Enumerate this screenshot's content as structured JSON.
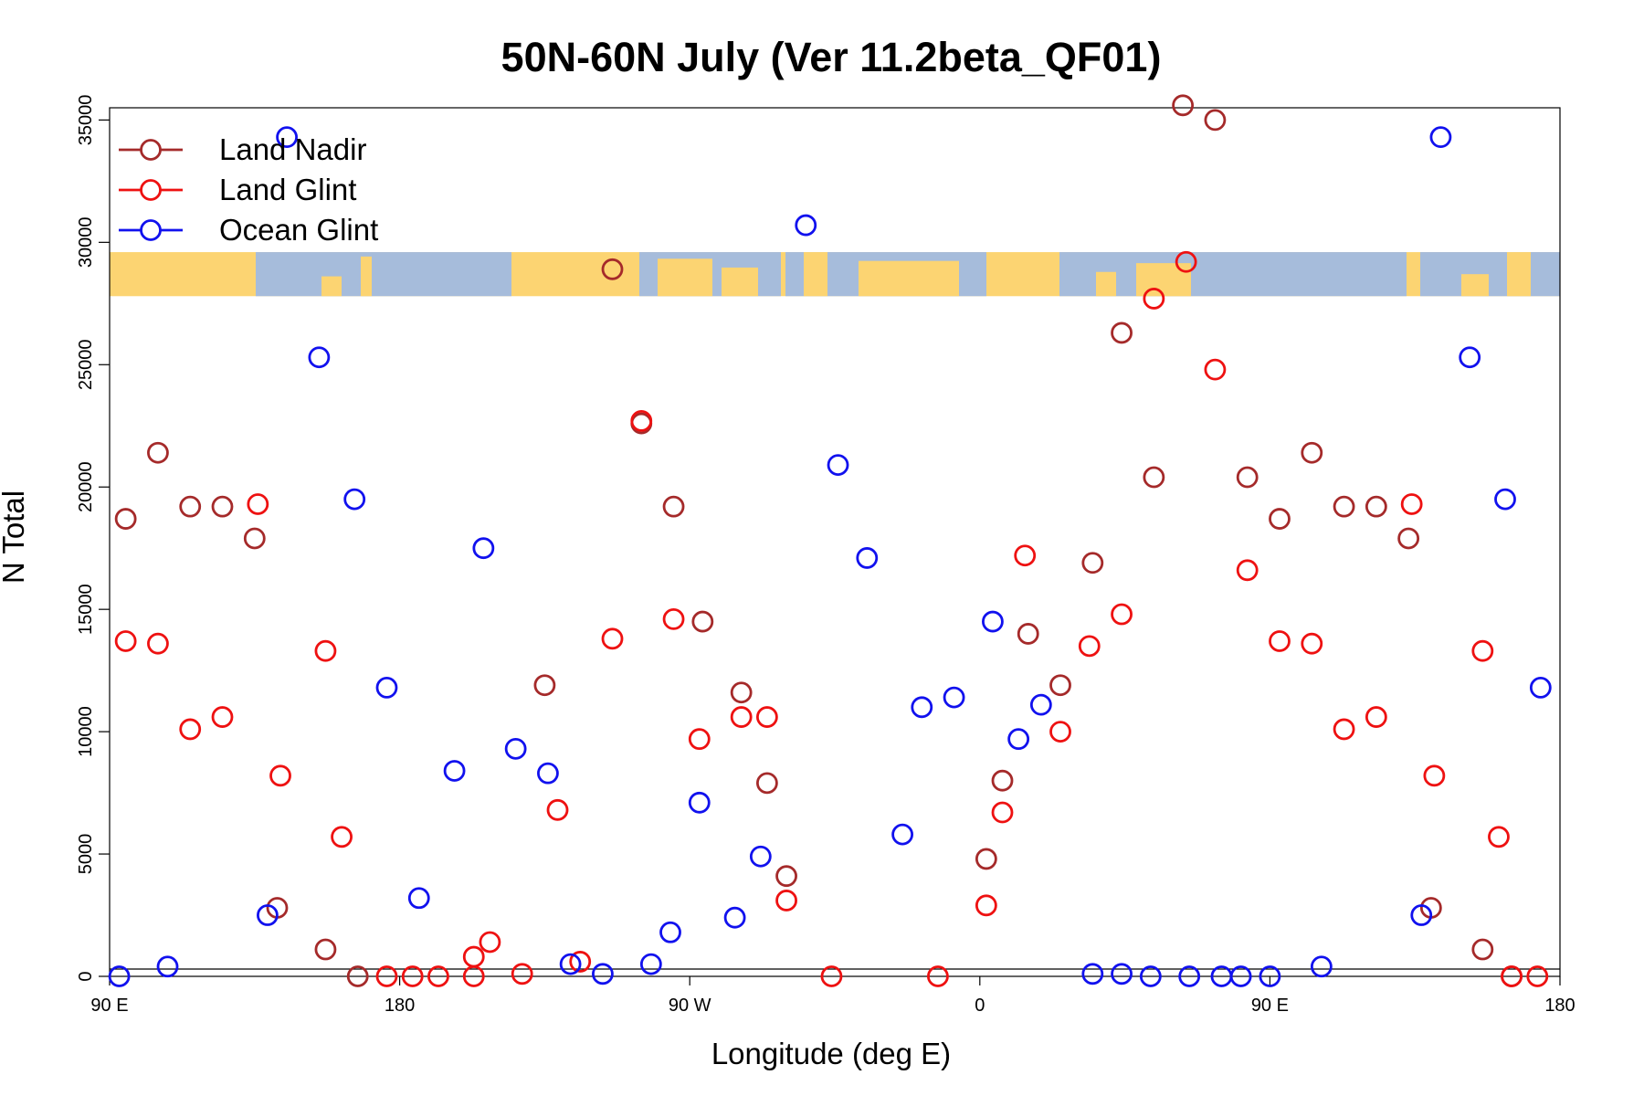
{
  "chart_data": {
    "type": "scatter",
    "title": "50N-60N July (Ver 11.2beta_QF01)",
    "xlabel": "Longitude (deg E)",
    "ylabel": "N Total",
    "xlim": [
      90,
      540
    ],
    "ylim": [
      0,
      35500
    ],
    "x_ticks": [
      {
        "value": 90,
        "label": "90 E"
      },
      {
        "value": 180,
        "label": "180"
      },
      {
        "value": 270,
        "label": "90 W"
      },
      {
        "value": 360,
        "label": "0"
      },
      {
        "value": 450,
        "label": "90 E"
      },
      {
        "value": 540,
        "label": "180"
      }
    ],
    "y_ticks": [
      {
        "value": 0,
        "label": "0"
      },
      {
        "value": 5000,
        "label": "5000"
      },
      {
        "value": 10000,
        "label": "10000"
      },
      {
        "value": 15000,
        "label": "15000"
      },
      {
        "value": 20000,
        "label": "20000"
      },
      {
        "value": 25000,
        "label": "25000"
      },
      {
        "value": 30000,
        "label": "30000"
      },
      {
        "value": 35000,
        "label": "35000"
      }
    ],
    "grid": false,
    "legend_position": "top-left",
    "baseline_y": 300,
    "map_strip": {
      "y_range": [
        27800,
        29600
      ],
      "land_color": "#fcd472",
      "ocean_color": "#a6bcdb"
    },
    "series": [
      {
        "name": "Land Nadir",
        "color": "#a52a2a",
        "points": [
          [
            95,
            18700
          ],
          [
            105,
            21400
          ],
          [
            115,
            19200
          ],
          [
            125,
            19200
          ],
          [
            135,
            17900
          ],
          [
            142,
            2800
          ],
          [
            157,
            1100
          ],
          [
            167,
            0
          ],
          [
            246,
            28900
          ],
          [
            255,
            22600
          ],
          [
            265,
            19200
          ],
          [
            225,
            11900
          ],
          [
            274,
            14500
          ],
          [
            286,
            11600
          ],
          [
            294,
            7900
          ],
          [
            300,
            4100
          ],
          [
            362,
            4800
          ],
          [
            367,
            8000
          ],
          [
            404,
            26300
          ],
          [
            414,
            20400
          ],
          [
            423,
            35600
          ],
          [
            433,
            35000
          ],
          [
            385,
            11900
          ],
          [
            375,
            14000
          ],
          [
            395,
            16900
          ],
          [
            443,
            20400
          ],
          [
            453,
            18700
          ],
          [
            463,
            21400
          ],
          [
            473,
            19200
          ],
          [
            483,
            19200
          ],
          [
            493,
            17900
          ],
          [
            500,
            2800
          ],
          [
            516,
            1100
          ],
          [
            525,
            0
          ]
        ]
      },
      {
        "name": "Land Glint",
        "color": "#ee1111",
        "points": [
          [
            95,
            13700
          ],
          [
            105,
            13600
          ],
          [
            115,
            10100
          ],
          [
            125,
            10600
          ],
          [
            136,
            19300
          ],
          [
            143,
            8200
          ],
          [
            157,
            13300
          ],
          [
            162,
            5700
          ],
          [
            176,
            0
          ],
          [
            184,
            0
          ],
          [
            208,
            1400
          ],
          [
            218,
            100
          ],
          [
            203,
            800
          ],
          [
            203,
            0
          ],
          [
            192,
            0
          ],
          [
            229,
            6800
          ],
          [
            236,
            600
          ],
          [
            246,
            13800
          ],
          [
            255,
            22700
          ],
          [
            265,
            14600
          ],
          [
            273,
            9700
          ],
          [
            286,
            10600
          ],
          [
            294,
            10600
          ],
          [
            300,
            3100
          ],
          [
            314,
            0
          ],
          [
            347,
            0
          ],
          [
            362,
            2900
          ],
          [
            367,
            6700
          ],
          [
            374,
            17200
          ],
          [
            385,
            10000
          ],
          [
            394,
            13500
          ],
          [
            404,
            14800
          ],
          [
            414,
            27700
          ],
          [
            424,
            29200
          ],
          [
            433,
            24800
          ],
          [
            443,
            16600
          ],
          [
            453,
            13700
          ],
          [
            463,
            13600
          ],
          [
            473,
            10100
          ],
          [
            483,
            10600
          ],
          [
            494,
            19300
          ],
          [
            501,
            8200
          ],
          [
            516,
            13300
          ],
          [
            521,
            5700
          ],
          [
            525,
            0
          ],
          [
            533,
            0
          ]
        ]
      },
      {
        "name": "Ocean Glint",
        "color": "#1111ee",
        "points": [
          [
            93,
            0
          ],
          [
            108,
            400
          ],
          [
            139,
            2500
          ],
          [
            145,
            34300
          ],
          [
            155,
            25300
          ],
          [
            166,
            19500
          ],
          [
            176,
            11800
          ],
          [
            186,
            3200
          ],
          [
            197,
            8400
          ],
          [
            206,
            17500
          ],
          [
            216,
            9300
          ],
          [
            226,
            8300
          ],
          [
            233,
            500
          ],
          [
            243,
            100
          ],
          [
            258,
            500
          ],
          [
            264,
            1800
          ],
          [
            273,
            7100
          ],
          [
            284,
            2400
          ],
          [
            292,
            4900
          ],
          [
            306,
            30700
          ],
          [
            316,
            20900
          ],
          [
            325,
            17100
          ],
          [
            336,
            5800
          ],
          [
            342,
            11000
          ],
          [
            352,
            11400
          ],
          [
            364,
            14500
          ],
          [
            372,
            9700
          ],
          [
            379,
            11100
          ],
          [
            395,
            100
          ],
          [
            404,
            100
          ],
          [
            413,
            0
          ],
          [
            425,
            0
          ],
          [
            435,
            0
          ],
          [
            441,
            0
          ],
          [
            450,
            0
          ],
          [
            466,
            400
          ],
          [
            497,
            2500
          ],
          [
            503,
            34300
          ],
          [
            512,
            25300
          ],
          [
            523,
            19500
          ],
          [
            534,
            11800
          ]
        ]
      }
    ]
  }
}
